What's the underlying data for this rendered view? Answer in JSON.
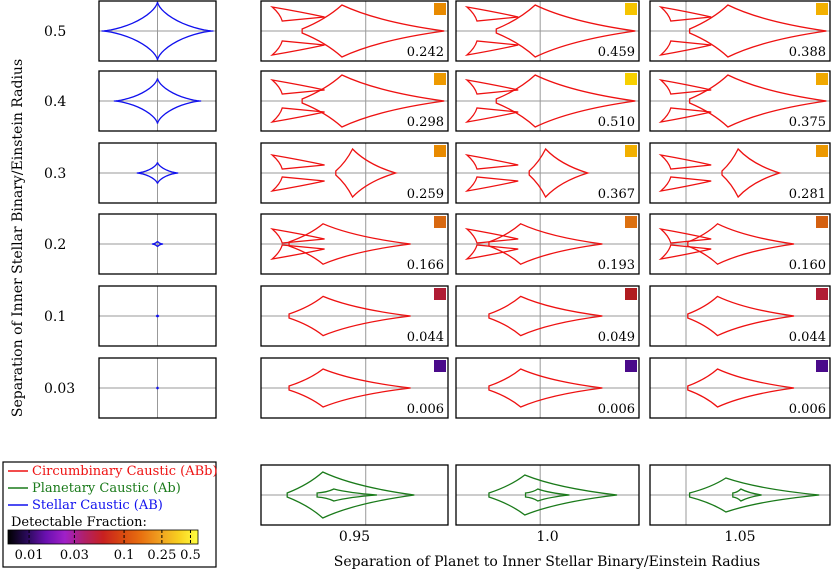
{
  "figure": {
    "y_axis_label": "Separation of Inner Stellar Binary/Einstein Radius",
    "x_axis_label": "Separation of Planet to Inner Stellar Binary/Einstein Radius"
  },
  "legend": {
    "entries": [
      {
        "label": "Circumbinary Caustic (ABb)",
        "color": "#ee1111"
      },
      {
        "label": "Planetary Caustic (Ab)",
        "color": "#1a7a1a"
      },
      {
        "label": "Stellar Caustic (AB)",
        "color": "#1111ee"
      }
    ],
    "colorbar_title": "Detectable Fraction:",
    "colorbar_ticks": [
      "0.01",
      "0.03",
      "0.1",
      "0.25",
      "0.5"
    ]
  },
  "colors": {
    "circumbinary": "#ee1111",
    "planetary": "#1a7a1a",
    "stellar": "#1111ee",
    "axis_lines": "#999999"
  },
  "chart_data": {
    "type": "grid-of-caustic-panels",
    "row_axis": "inner binary separation",
    "column_axis": "planet separation",
    "rows": [
      "0.5",
      "0.4",
      "0.3",
      "0.2",
      "0.1",
      "0.03"
    ],
    "columns": [
      "0.95",
      "1.0",
      "1.05"
    ],
    "detectable_fraction": [
      [
        "0.242",
        "0.459",
        "0.388"
      ],
      [
        "0.298",
        "0.510",
        "0.375"
      ],
      [
        "0.259",
        "0.367",
        "0.281"
      ],
      [
        "0.166",
        "0.193",
        "0.160"
      ],
      [
        "0.044",
        "0.049",
        "0.044"
      ],
      [
        "0.006",
        "0.006",
        "0.006"
      ]
    ],
    "detectable_fraction_values": [
      [
        0.242,
        0.459,
        0.388
      ],
      [
        0.298,
        0.51,
        0.375
      ],
      [
        0.259,
        0.367,
        0.281
      ],
      [
        0.166,
        0.193,
        0.16
      ],
      [
        0.044,
        0.049,
        0.044
      ],
      [
        0.006,
        0.006,
        0.006
      ]
    ],
    "swatch_colors": [
      [
        "#e88a00",
        "#f5c400",
        "#f2b000"
      ],
      [
        "#ee9a00",
        "#f7d000",
        "#f0a800"
      ],
      [
        "#e88a00",
        "#f2b000",
        "#ec9800"
      ],
      [
        "#d86810",
        "#dc7010",
        "#d46010"
      ],
      [
        "#b01c34",
        "#b01c20",
        "#b01c34"
      ],
      [
        "#4a0a8a",
        "#4a0a8a",
        "#4a0a8a"
      ]
    ],
    "colorbar_stops": [
      "#000000",
      "#2a0a5a",
      "#6a10b0",
      "#a020c8",
      "#b0206a",
      "#c82020",
      "#d84810",
      "#e87010",
      "#f0a020",
      "#f8d020",
      "#ffff40"
    ],
    "colorbar_scale": "log",
    "colorbar_range": [
      0.006,
      0.6
    ]
  }
}
